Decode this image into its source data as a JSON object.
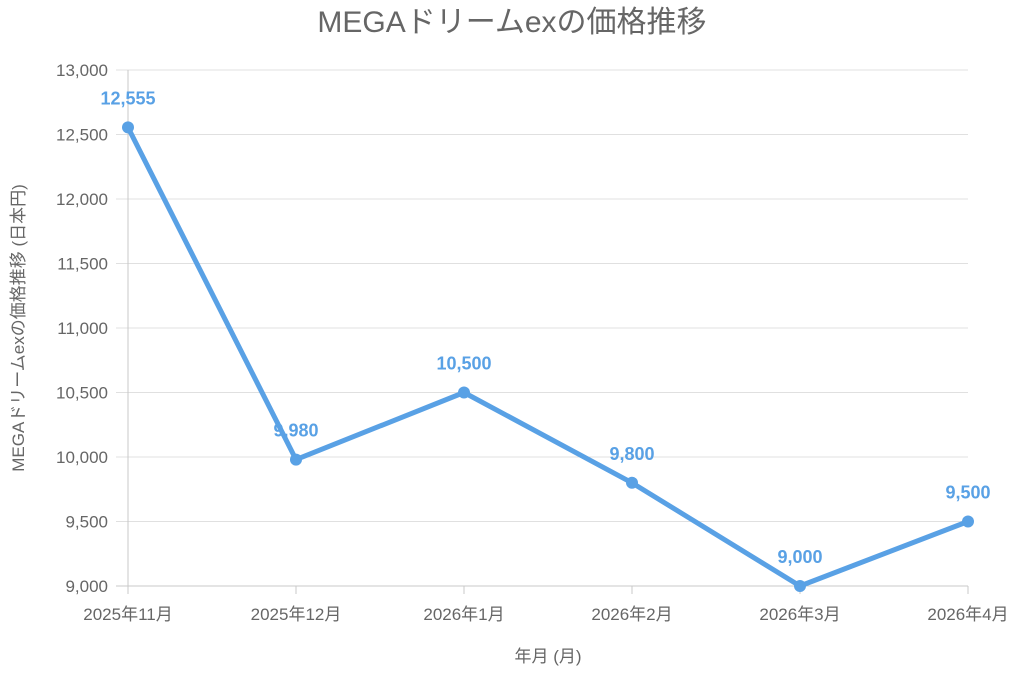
{
  "chart_data": {
    "type": "line",
    "title": "MEGAドリームexの価格推移",
    "xlabel": "年月 (月)",
    "ylabel": "MEGAドリームexの価格推移 (日本円)",
    "categories": [
      "2025年11月",
      "2025年12月",
      "2026年1月",
      "2026年2月",
      "2026年3月",
      "2026年4月"
    ],
    "series": [
      {
        "name": "MEGAドリームexの価格推移",
        "values": [
          12555,
          9980,
          10500,
          9800,
          9000,
          9500
        ]
      }
    ],
    "data_labels": [
      "12,555",
      "9,980",
      "10,500",
      "9,800",
      "9,000",
      "9,500"
    ],
    "ylim": [
      9000,
      13000
    ],
    "yticks": [
      9000,
      9500,
      10000,
      10500,
      11000,
      11500,
      12000,
      12500,
      13000
    ],
    "ytick_labels": [
      "9,000",
      "9,500",
      "10,000",
      "10,500",
      "11,000",
      "11,500",
      "12,000",
      "12,500",
      "13,000"
    ],
    "grid": true,
    "legend": "none",
    "colors": {
      "line": "#59a1e5",
      "grid": "#e0e0e0",
      "text": "#666666"
    }
  }
}
